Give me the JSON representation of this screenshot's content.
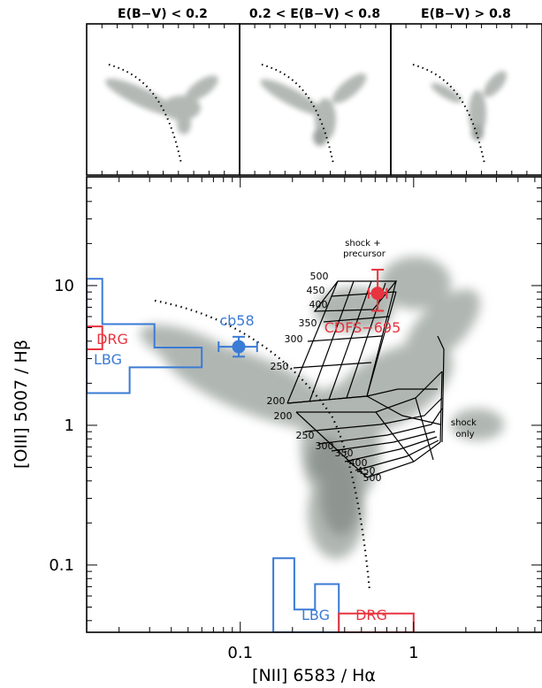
{
  "chart_data": [
    {
      "type": "scatter",
      "panel": "top-1",
      "title": "E(B−V) < 0.2",
      "xscale": "log",
      "yscale": "log",
      "series": [
        {
          "name": "",
          "style": "gray density cloud"
        }
      ],
      "curve": "dotted demarcation line"
    },
    {
      "type": "scatter",
      "panel": "top-2",
      "title": "0.2 < E(B−V) < 0.8",
      "xscale": "log",
      "yscale": "log",
      "series": [
        {
          "name": "",
          "style": "gray density cloud"
        }
      ],
      "curve": "dotted demarcation line"
    },
    {
      "type": "scatter",
      "panel": "top-3",
      "title": "E(B−V) > 0.8",
      "xscale": "log",
      "yscale": "log",
      "series": [
        {
          "name": "",
          "style": "gray density cloud"
        }
      ],
      "curve": "dotted demarcation line"
    },
    {
      "type": "scatter",
      "panel": "main",
      "xlabel": "[NII] 6583 / Hα",
      "ylabel": "[OIII] 5007 / Hβ",
      "xscale": "log",
      "yscale": "log",
      "xlim": [
        0.013,
        5.5
      ],
      "ylim": [
        0.033,
        60
      ],
      "xticks": [
        {
          "v": 0.1,
          "label": "0.1"
        },
        {
          "v": 1,
          "label": "1"
        }
      ],
      "yticks": [
        {
          "v": 0.1,
          "label": "0.1"
        },
        {
          "v": 1,
          "label": "1"
        },
        {
          "v": 10,
          "label": "10"
        }
      ],
      "grid": false,
      "points": [
        {
          "name": "cb58",
          "x": 0.098,
          "y": 3.65,
          "xerr": [
            0.075,
            0.125
          ],
          "yerr": [
            3.1,
            4.3
          ],
          "color": "#3a7bd5"
        },
        {
          "name": "CDFS−695",
          "x": 0.62,
          "y": 8.8,
          "xerr": [
            0.55,
            0.7
          ],
          "yerr": [
            6.6,
            13.0
          ],
          "color": "#e8343f"
        }
      ],
      "regions": [
        {
          "name": "DRG",
          "color": "#e8343f",
          "poly": [
            [
              0.013,
              5.1
            ],
            [
              0.016,
              5.1
            ],
            [
              0.016,
              3.5
            ],
            [
              0.013,
              3.5
            ]
          ]
        },
        {
          "name": "LBG",
          "color": "#3a7bd5",
          "poly": [
            [
              0.013,
              11.2
            ],
            [
              0.016,
              11.2
            ],
            [
              0.016,
              5.3
            ],
            [
              0.032,
              5.3
            ],
            [
              0.032,
              3.6
            ],
            [
              0.06,
              3.6
            ],
            [
              0.06,
              2.6
            ],
            [
              0.023,
              2.6
            ],
            [
              0.023,
              1.7
            ],
            [
              0.013,
              1.7
            ]
          ]
        },
        {
          "name": "LBG",
          "color": "#3a7bd5",
          "poly": [
            [
              0.155,
              0.033
            ],
            [
              0.155,
              0.112
            ],
            [
              0.205,
              0.112
            ],
            [
              0.205,
              0.048
            ],
            [
              0.27,
              0.048
            ],
            [
              0.27,
              0.073
            ],
            [
              0.37,
              0.073
            ],
            [
              0.37,
              0.033
            ]
          ]
        },
        {
          "name": "DRG",
          "color": "#e8343f",
          "poly": [
            [
              0.37,
              0.033
            ],
            [
              0.37,
              0.045
            ],
            [
              1.0,
              0.045
            ],
            [
              1.0,
              0.033
            ]
          ]
        }
      ],
      "model_grids": [
        {
          "label": "shock + precursor",
          "velocities": [
            "500",
            "450",
            "400",
            "350",
            "300",
            "250",
            "200"
          ]
        },
        {
          "label": "shock only",
          "velocities": [
            "200",
            "250",
            "300",
            "350",
            "400",
            "450",
            "500"
          ]
        }
      ]
    }
  ]
}
